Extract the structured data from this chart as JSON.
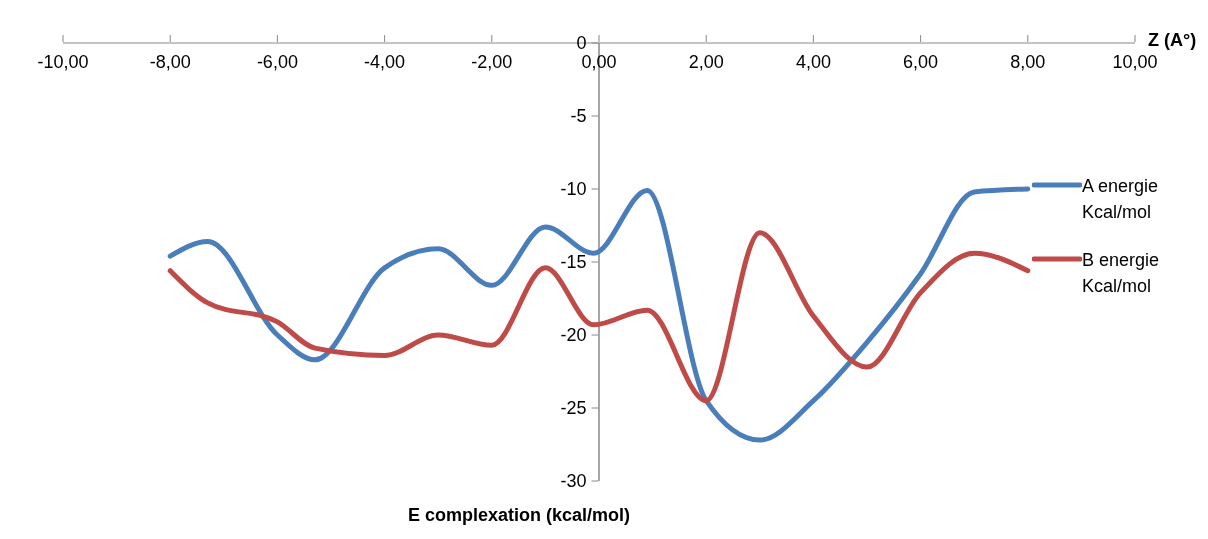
{
  "chart_data": {
    "type": "line",
    "xlabel": "Z (A°)",
    "annotations": [
      "E complexation (kcal/mol)"
    ],
    "x": [
      -8,
      -7.3,
      -6,
      -5.3,
      -4,
      -3,
      -2,
      -1,
      -0.1,
      0.9,
      2,
      3,
      4,
      5,
      6,
      7,
      8
    ],
    "series": [
      {
        "name": "A energie Kcal/mol",
        "color": "#4a7ebb",
        "values": [
          -14.6,
          -13.6,
          -20,
          -21.7,
          -15.4,
          -14.1,
          -16.6,
          -12.6,
          -14.4,
          -10.1,
          -24.5,
          -27.2,
          -24.5,
          -20.5,
          -15.8,
          -10.2,
          -10
        ]
      },
      {
        "name": "B energie Kcal/mol",
        "color": "#be4b48",
        "values": [
          -15.6,
          -17.8,
          -19.1,
          -20.9,
          -21.4,
          -20,
          -20.7,
          -15.4,
          -19.3,
          -18.3,
          -24.5,
          -13,
          -18.7,
          -22.2,
          -17.1,
          -14.4,
          -15.6
        ]
      }
    ],
    "xlim": [
      -10,
      10
    ],
    "xticks": [
      {
        "value": -10,
        "label": "-10,00"
      },
      {
        "value": -8,
        "label": "-8,00"
      },
      {
        "value": -6,
        "label": "-6,00"
      },
      {
        "value": -4,
        "label": "-4,00"
      },
      {
        "value": -2,
        "label": "-2,00"
      },
      {
        "value": 0,
        "label": "0,00"
      },
      {
        "value": 2,
        "label": "2,00"
      },
      {
        "value": 4,
        "label": "4,00"
      },
      {
        "value": 6,
        "label": "6,00"
      },
      {
        "value": 8,
        "label": "8,00"
      },
      {
        "value": 10,
        "label": "10,00"
      }
    ],
    "ylim": [
      -30,
      0
    ],
    "yticks": [
      0,
      -5,
      -10,
      -15,
      -20,
      -25,
      -30
    ],
    "legend": "right",
    "marker": "none",
    "line_style": "solid"
  }
}
